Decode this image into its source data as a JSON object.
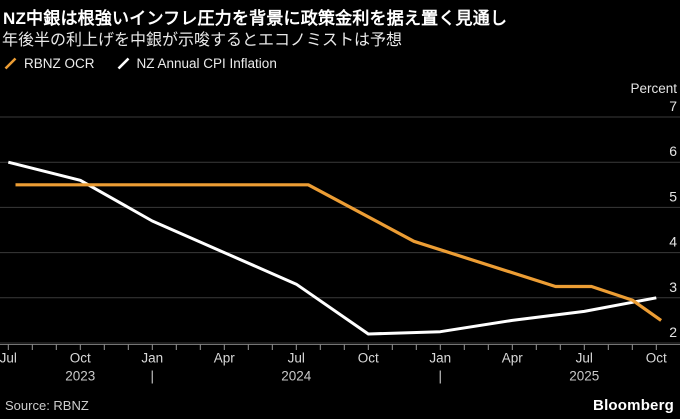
{
  "header": {
    "title": "NZ中銀は根強いインフレ圧力を背景に政策金利を据え置く見通し",
    "subtitle": "年後半の利上げを中銀が示唆するとエコノミストは予想"
  },
  "legend": [
    {
      "label": "RBNZ OCR",
      "color": "#EC9D34"
    },
    {
      "label": "NZ Annual CPI Inflation",
      "color": "#FFFFFF"
    }
  ],
  "footer": {
    "source": "Source: RBNZ",
    "brand": "Bloomberg"
  },
  "colors": {
    "background": "#000000",
    "grid": "#3a3a3a",
    "axis": "#757575",
    "tick": "#999999",
    "y_label": "#e4e4e4",
    "x_label": "#d8d8d8",
    "year_label": "#c9c9c9",
    "ocr_line": "#EC9D34",
    "cpi_line": "#FFFFFF"
  },
  "chart_data": {
    "type": "line",
    "title": "NZ中銀は根強いインフレ圧力を背景に政策金利を据え置く見通し",
    "subtitle": "年後半の利上げを中銀が示唆するとエコノミストは予想",
    "ylabel": "Percent",
    "ylim": [
      2,
      7
    ],
    "grid": true,
    "legend_position": "top-left",
    "x_range": [
      "Jul 2023",
      "Oct 2025"
    ],
    "months_total": 27,
    "y_axis": {
      "label": "Percent",
      "ticks": [
        7,
        6,
        5,
        4,
        3,
        2
      ]
    },
    "x_axis": {
      "major_tick_labels": [
        "Jul",
        "Oct",
        "Jan",
        "Apr",
        "Jul",
        "Oct",
        "Jan",
        "Apr",
        "Jul",
        "Oct"
      ],
      "major_tick_month_index": [
        0,
        3,
        6,
        9,
        12,
        15,
        18,
        21,
        24,
        27
      ],
      "minor_tick_every_months": 1,
      "year_row": [
        {
          "text": "2023",
          "month_index": 3
        },
        {
          "text": "|",
          "month_index": 6
        },
        {
          "text": "2024",
          "month_index": 12
        },
        {
          "text": "|",
          "month_index": 18
        },
        {
          "text": "2025",
          "month_index": 24
        }
      ]
    },
    "series": [
      {
        "name": "RBNZ OCR",
        "color": "#EC9D34",
        "width": 3.2,
        "points_month_value": [
          [
            0.3,
            5.5
          ],
          [
            12.5,
            5.5
          ],
          [
            16.9,
            4.25
          ],
          [
            22.8,
            3.25
          ],
          [
            24.3,
            3.25
          ],
          [
            26,
            2.95
          ],
          [
            27.2,
            2.5
          ]
        ]
      },
      {
        "name": "NZ Annual CPI Inflation",
        "color": "#FFFFFF",
        "width": 3,
        "points_month_value": [
          [
            0,
            6.0
          ],
          [
            3,
            5.6
          ],
          [
            6,
            4.7
          ],
          [
            9,
            4.0
          ],
          [
            12,
            3.3
          ],
          [
            15,
            2.2
          ],
          [
            18,
            2.25
          ],
          [
            21,
            2.5
          ],
          [
            24,
            2.7
          ],
          [
            27,
            3.0
          ]
        ]
      }
    ]
  }
}
